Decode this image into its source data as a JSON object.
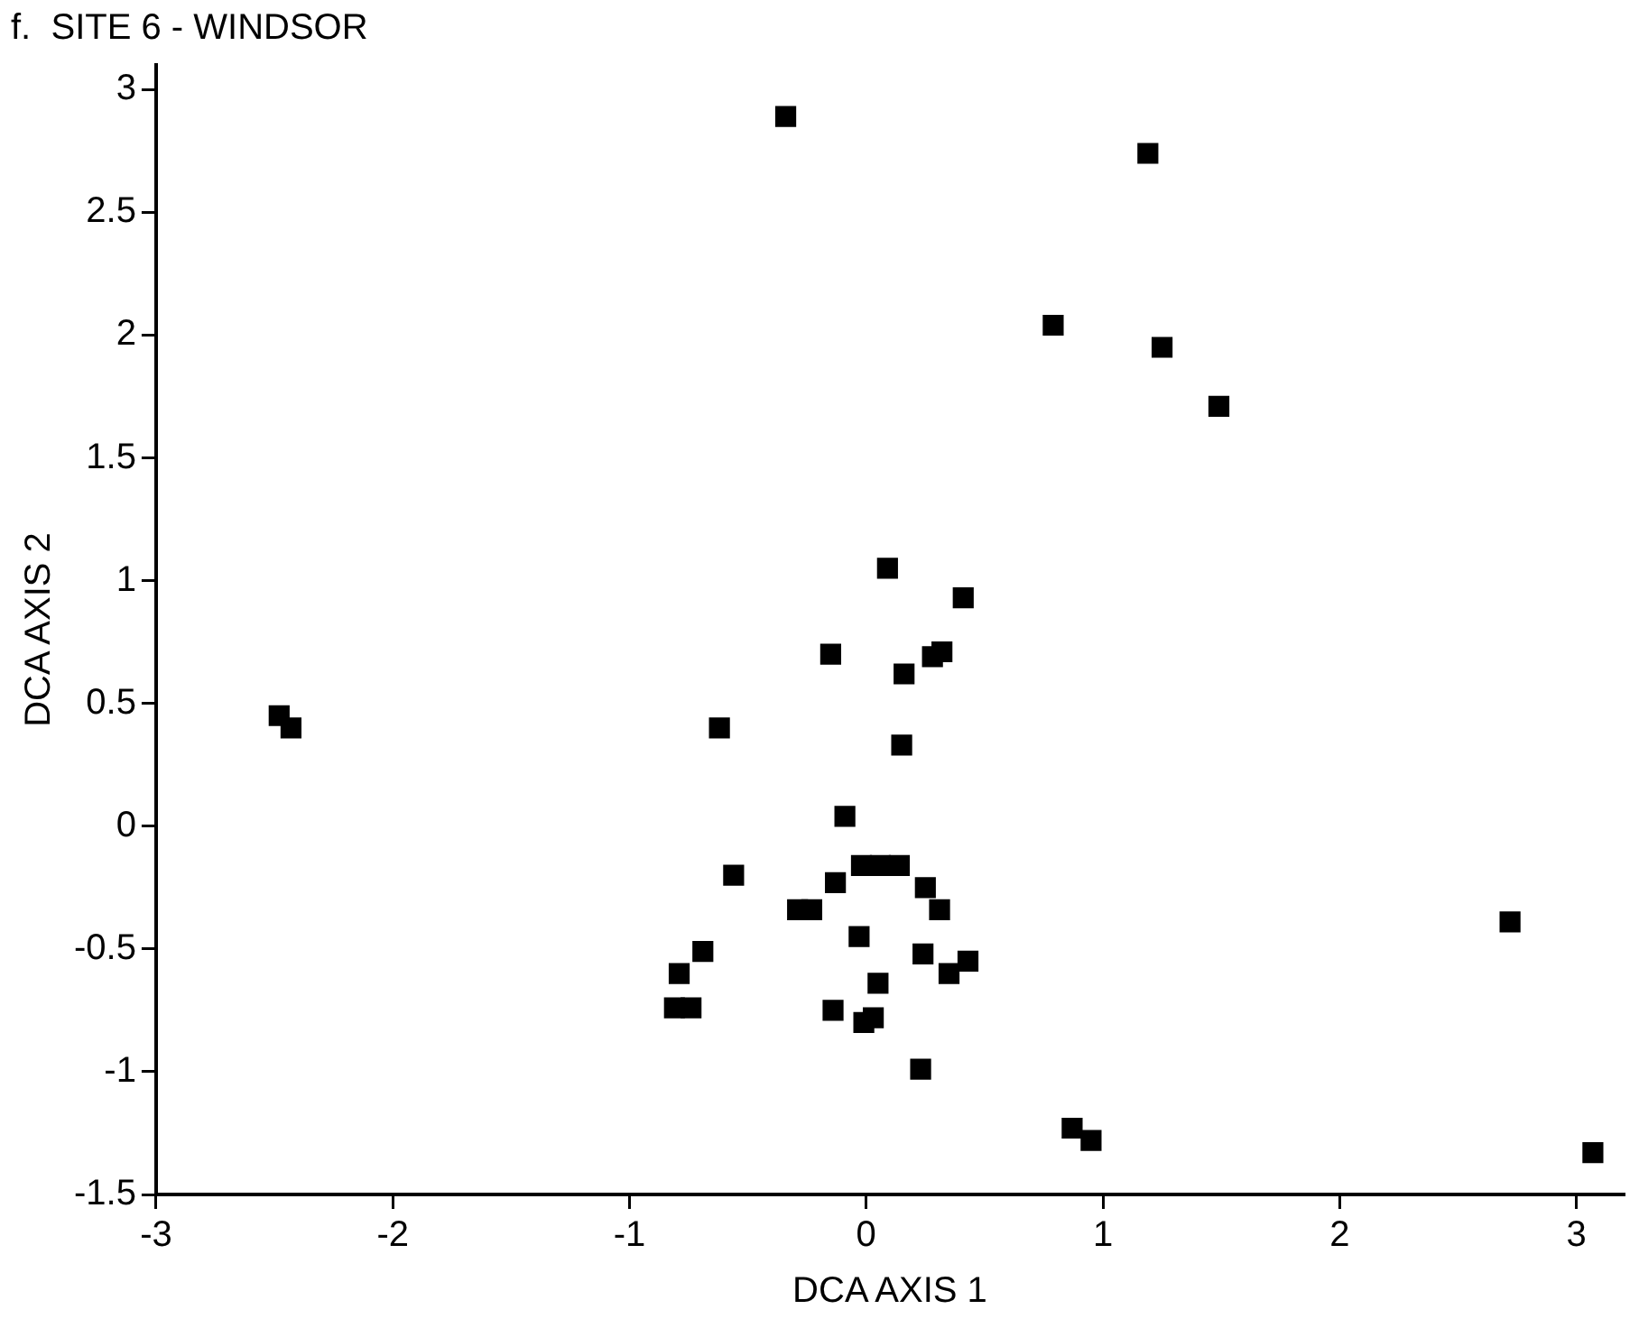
{
  "chart_data": {
    "type": "scatter",
    "title": "f.  SITE 6 - WINDSOR",
    "xlabel": "DCA AXIS 1",
    "ylabel": "DCA AXIS 2",
    "x": [
      -0.34,
      1.19,
      0.79,
      1.25,
      1.49,
      0.09,
      0.41,
      -0.15,
      0.32,
      0.28,
      0.16,
      -0.62,
      0.15,
      -0.09,
      -0.56,
      -0.13,
      -0.29,
      -0.23,
      -0.02,
      0.06,
      0.14,
      0.25,
      0.31,
      -0.03,
      0.24,
      0.43,
      0.35,
      -0.69,
      -0.79,
      -0.81,
      -0.74,
      -0.14,
      0.05,
      -0.01,
      0.03,
      0.23,
      -2.48,
      -2.43,
      2.72,
      0.87,
      0.95,
      3.07
    ],
    "values": [
      2.89,
      2.74,
      2.04,
      1.95,
      1.71,
      1.05,
      0.93,
      0.7,
      0.71,
      0.69,
      0.62,
      0.4,
      0.33,
      0.04,
      -0.2,
      -0.23,
      -0.34,
      -0.34,
      -0.16,
      -0.16,
      -0.16,
      -0.25,
      -0.34,
      -0.45,
      -0.52,
      -0.55,
      -0.6,
      -0.51,
      -0.6,
      -0.74,
      -0.74,
      -0.75,
      -0.64,
      -0.8,
      -0.78,
      -0.99,
      0.45,
      0.4,
      -0.39,
      -1.23,
      -1.28,
      -1.33
    ],
    "color": "#000000",
    "marker": "square",
    "xlim": [
      -3,
      3.2
    ],
    "xticks": [
      -3,
      -2,
      -1,
      0,
      1,
      2,
      3
    ],
    "ylim": [
      -1.5,
      3.1
    ],
    "yticks": [
      -1.5,
      -1,
      -0.5,
      0,
      0.5,
      1,
      1.5,
      2,
      2.5,
      3
    ],
    "grid": false,
    "legend": false
  }
}
